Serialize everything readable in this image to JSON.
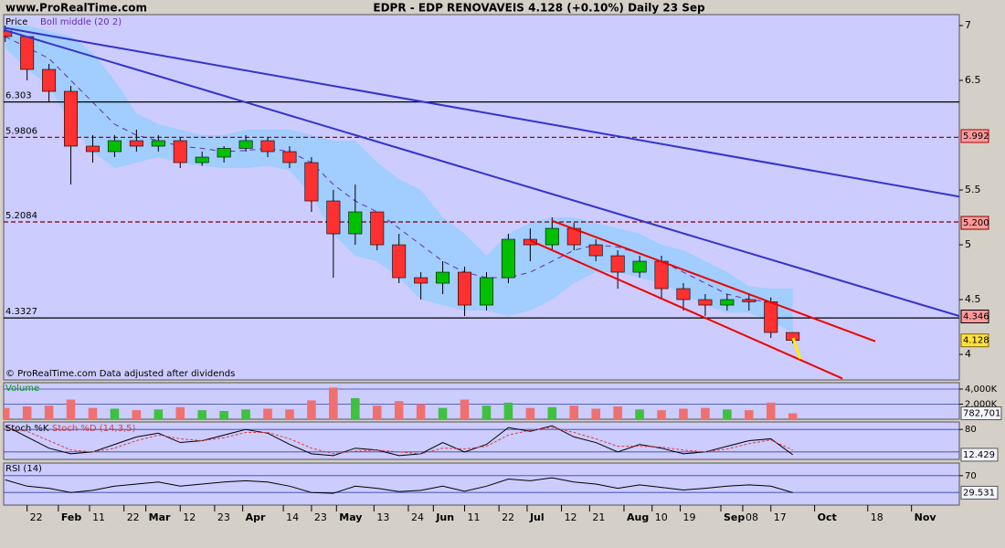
{
  "header": {
    "site": "www.ProRealTime.com",
    "title": "EDPR - EDP RENOVAVEIS    4.128 (+0.10%)    Daily  23 Sep"
  },
  "chart_data": [
    {
      "type": "candlestick",
      "legend": "Price",
      "footnote": "© ProRealTime.com  Data adjusted after dividends",
      "x": [
        15,
        22,
        29,
        36,
        43,
        50,
        57,
        64,
        71,
        78,
        85,
        92,
        99,
        106,
        113,
        120,
        127,
        134,
        141,
        148,
        155,
        162,
        169,
        176,
        183,
        190,
        197,
        204,
        211,
        218,
        225,
        232,
        239,
        246,
        253,
        260,
        267
      ],
      "open": [
        6.95,
        6.9,
        6.6,
        6.4,
        5.9,
        5.85,
        5.95,
        5.9,
        5.95,
        5.75,
        5.8,
        5.88,
        5.95,
        5.85,
        5.75,
        5.4,
        5.1,
        5.3,
        5.0,
        4.7,
        4.65,
        4.75,
        4.45,
        4.7,
        5.05,
        5.0,
        5.15,
        5.0,
        4.9,
        4.75,
        4.85,
        4.6,
        4.5,
        4.45,
        4.5,
        4.48,
        4.2
      ],
      "high": [
        7.0,
        6.9,
        6.65,
        6.45,
        6.0,
        6.0,
        6.05,
        6.0,
        5.98,
        5.85,
        5.9,
        6.0,
        5.98,
        5.9,
        5.8,
        5.5,
        5.55,
        5.3,
        5.1,
        4.75,
        4.85,
        4.8,
        4.75,
        5.1,
        5.15,
        5.25,
        5.2,
        5.05,
        4.95,
        4.9,
        4.9,
        4.65,
        4.55,
        4.55,
        4.55,
        4.52,
        4.2
      ],
      "low": [
        6.85,
        6.5,
        6.3,
        5.55,
        5.75,
        5.8,
        5.85,
        5.85,
        5.7,
        5.72,
        5.75,
        5.85,
        5.8,
        5.7,
        5.3,
        4.7,
        5.0,
        4.95,
        4.65,
        4.5,
        4.55,
        4.35,
        4.4,
        4.65,
        4.85,
        4.95,
        4.95,
        4.85,
        4.6,
        4.7,
        4.5,
        4.4,
        4.35,
        4.4,
        4.4,
        4.15,
        4.1
      ],
      "close": [
        6.9,
        6.6,
        6.4,
        5.9,
        5.85,
        5.95,
        5.9,
        5.95,
        5.75,
        5.8,
        5.88,
        5.95,
        5.85,
        5.75,
        5.4,
        5.1,
        5.3,
        5.0,
        4.7,
        4.65,
        4.75,
        4.45,
        4.7,
        5.05,
        5.0,
        5.15,
        5.0,
        4.9,
        4.75,
        4.85,
        4.6,
        4.5,
        4.45,
        4.5,
        4.48,
        4.2,
        4.128
      ],
      "up_color": "#00c000",
      "down_color": "#ff3030",
      "bands": {
        "name": "Boll middle (20 2)",
        "color": "#6a2ab0",
        "fill": "#99ccff",
        "middle": [
          6.9,
          6.8,
          6.7,
          6.5,
          6.3,
          6.1,
          6.0,
          5.95,
          5.9,
          5.88,
          5.85,
          5.86,
          5.88,
          5.85,
          5.75,
          5.55,
          5.4,
          5.3,
          5.15,
          5.0,
          4.85,
          4.75,
          4.7,
          4.7,
          4.75,
          4.85,
          4.95,
          5.0,
          4.98,
          4.92,
          4.85,
          4.75,
          4.65,
          4.55,
          4.5,
          4.48,
          4.4
        ],
        "upper": [
          7.0,
          7.0,
          6.95,
          6.9,
          6.75,
          6.5,
          6.2,
          6.1,
          6.05,
          6.0,
          6.0,
          6.05,
          6.05,
          6.05,
          6.0,
          5.95,
          5.95,
          5.75,
          5.6,
          5.5,
          5.25,
          5.1,
          4.9,
          5.1,
          5.2,
          5.25,
          5.25,
          5.2,
          5.15,
          5.1,
          5.0,
          4.95,
          4.85,
          4.75,
          4.62,
          4.6,
          4.6
        ],
        "lower": [
          6.8,
          6.6,
          6.45,
          6.1,
          5.85,
          5.7,
          5.75,
          5.8,
          5.75,
          5.72,
          5.7,
          5.7,
          5.72,
          5.68,
          5.45,
          5.1,
          4.9,
          4.85,
          4.7,
          4.5,
          4.45,
          4.4,
          4.4,
          4.35,
          4.4,
          4.5,
          4.65,
          4.75,
          4.75,
          4.7,
          4.65,
          4.55,
          4.45,
          4.38,
          4.38,
          4.3,
          4.2
        ]
      },
      "levels": [
        {
          "left": 6.303,
          "color": "#000000",
          "dashed": false
        },
        {
          "left": 5.9806,
          "right": 5.992,
          "color": "#b00000",
          "dashed": true
        },
        {
          "left": 5.2084,
          "right": {
            "value": 5.2,
            "label": "5.200"
          },
          "color": "#800000",
          "dashed": true
        },
        {
          "left": 4.3327,
          "right": 4.346,
          "color": "#000000",
          "dashed": false
        }
      ],
      "trendlines": [
        {
          "x": [
            14.7,
            320.3
          ],
          "y": [
            6.98,
            5.44
          ],
          "color": "#3333cc"
        },
        {
          "x": [
            14.7,
            320.3
          ],
          "y": [
            6.96,
            4.35
          ],
          "color": "#3333cc"
        },
        {
          "x": [
            189.9,
            293.4
          ],
          "y": [
            5.22,
            4.12
          ],
          "color": "#ee0000"
        },
        {
          "x": [
            182.9,
            282.9
          ],
          "y": [
            5.04,
            3.78
          ],
          "color": "#ee0000"
        }
      ],
      "arrow": {
        "x": [
          267.1,
          269.4
        ],
        "y": [
          4.15,
          3.96
        ],
        "color": "#ffee00"
      },
      "xlim": [
        14.5,
        320.3
      ],
      "ylim": [
        3.767,
        7.1
      ],
      "yticks": [
        4,
        4.5,
        5,
        5.5,
        6.5,
        7
      ],
      "xticks": [
        {
          "value": 22,
          "label": "22"
        },
        {
          "value": 32,
          "label": "Feb"
        },
        {
          "value": 42,
          "label": "11"
        },
        {
          "value": 53,
          "label": "22"
        },
        {
          "value": 60,
          "label": "Mar"
        },
        {
          "value": 71,
          "label": "12"
        },
        {
          "value": 82,
          "label": "23"
        },
        {
          "value": 91,
          "label": "Apr"
        },
        {
          "value": 104,
          "label": "14"
        },
        {
          "value": 113,
          "label": "23"
        },
        {
          "value": 121,
          "label": "May"
        },
        {
          "value": 133,
          "label": "13"
        },
        {
          "value": 144,
          "label": "24"
        },
        {
          "value": 152,
          "label": "Jun"
        },
        {
          "value": 162,
          "label": "11"
        },
        {
          "value": 173,
          "label": "22"
        },
        {
          "value": 182,
          "label": "Jul"
        },
        {
          "value": 193,
          "label": "12"
        },
        {
          "value": 202,
          "label": "21"
        },
        {
          "value": 213,
          "label": "Aug"
        },
        {
          "value": 222,
          "label": "10"
        },
        {
          "value": 231,
          "label": "19"
        },
        {
          "value": 244,
          "label": "Sep"
        },
        {
          "value": 251,
          "label": "08"
        },
        {
          "value": 260,
          "label": "17"
        },
        {
          "value": 274,
          "label": "Oct"
        },
        {
          "value": 291,
          "label": "18"
        },
        {
          "value": 305,
          "label": "Nov"
        }
      ]
    },
    {
      "type": "bar",
      "title": "Volume",
      "ylim": [
        0,
        4850000
      ],
      "yticks": [
        {
          "value": 4000000,
          "label": "4,000K"
        },
        {
          "value": 2000000,
          "label": "2,000K"
        }
      ],
      "values": [
        1500000,
        1700000,
        1800000,
        2600000,
        1500000,
        1400000,
        1200000,
        1300000,
        1600000,
        1200000,
        1100000,
        1300000,
        1400000,
        1300000,
        2500000,
        4200000,
        2800000,
        1800000,
        2400000,
        2000000,
        1500000,
        2600000,
        1800000,
        2200000,
        1500000,
        1600000,
        1800000,
        1400000,
        1700000,
        1300000,
        1200000,
        1400000,
        1500000,
        1300000,
        1200000,
        2200000,
        782701
      ],
      "value_labels": [
        null,
        null,
        null,
        null,
        null,
        null,
        null,
        null,
        null,
        null,
        null,
        null,
        null,
        null,
        null,
        null,
        null,
        null,
        null,
        null,
        null,
        null,
        null,
        null,
        null,
        null,
        null,
        null,
        null,
        null,
        null,
        null,
        null,
        null,
        null,
        null,
        "782,701"
      ]
    },
    {
      "type": "line",
      "ylim": [
        0,
        100
      ],
      "yticks": [
        80
      ],
      "levels": [
        20
      ],
      "series": [
        {
          "name": "Stoch %K",
          "color": "#000000",
          "values": [
            90,
            60,
            30,
            15,
            20,
            40,
            60,
            70,
            45,
            50,
            65,
            80,
            70,
            40,
            15,
            10,
            30,
            25,
            10,
            15,
            45,
            20,
            40,
            85,
            75,
            90,
            60,
            45,
            20,
            40,
            30,
            15,
            20,
            35,
            50,
            55,
            12.429
          ]
        },
        {
          "name": "Stoch %D (14,3,5)",
          "color": "#e04040",
          "values": [
            85,
            75,
            50,
            25,
            20,
            30,
            50,
            65,
            55,
            50,
            58,
            72,
            72,
            55,
            30,
            15,
            22,
            25,
            20,
            15,
            30,
            28,
            35,
            65,
            78,
            85,
            72,
            55,
            35,
            35,
            33,
            25,
            20,
            28,
            42,
            52,
            25
          ]
        }
      ]
    },
    {
      "type": "line",
      "ylim": [
        0,
        100
      ],
      "yticks": [
        70
      ],
      "levels": [
        30
      ],
      "series": [
        {
          "name": "RSI (14)",
          "color": "#000000",
          "values": [
            60,
            45,
            40,
            30,
            35,
            45,
            50,
            55,
            45,
            50,
            55,
            58,
            55,
            45,
            30,
            28,
            45,
            40,
            32,
            35,
            45,
            33,
            45,
            62,
            58,
            65,
            55,
            50,
            40,
            48,
            42,
            36,
            40,
            45,
            48,
            45,
            29.531
          ]
        }
      ]
    }
  ]
}
